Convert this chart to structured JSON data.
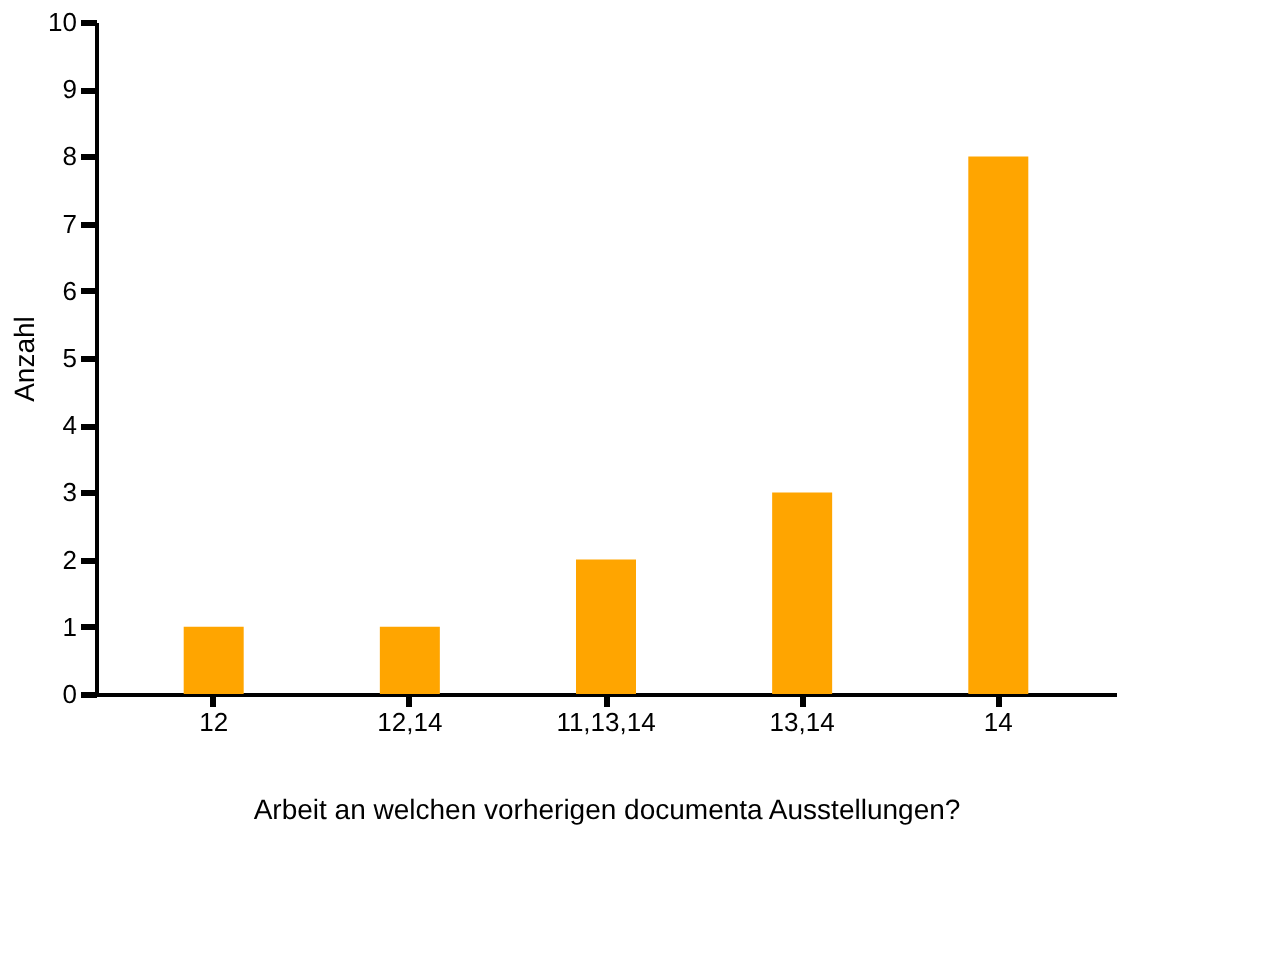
{
  "chart_data": {
    "type": "bar",
    "xlabel": "Arbeit an welchen vorherigen documenta Ausstellungen?",
    "ylabel": "Anzahl",
    "categories": [
      "12",
      "12,14",
      "11,13,14",
      "13,14",
      "14"
    ],
    "values": [
      1,
      1,
      2,
      3,
      8
    ],
    "color": "#ffa500",
    "ylim": [
      0,
      10
    ],
    "yticks": [
      0,
      1,
      2,
      3,
      4,
      5,
      6,
      7,
      8,
      9,
      10
    ],
    "grid": false
  }
}
